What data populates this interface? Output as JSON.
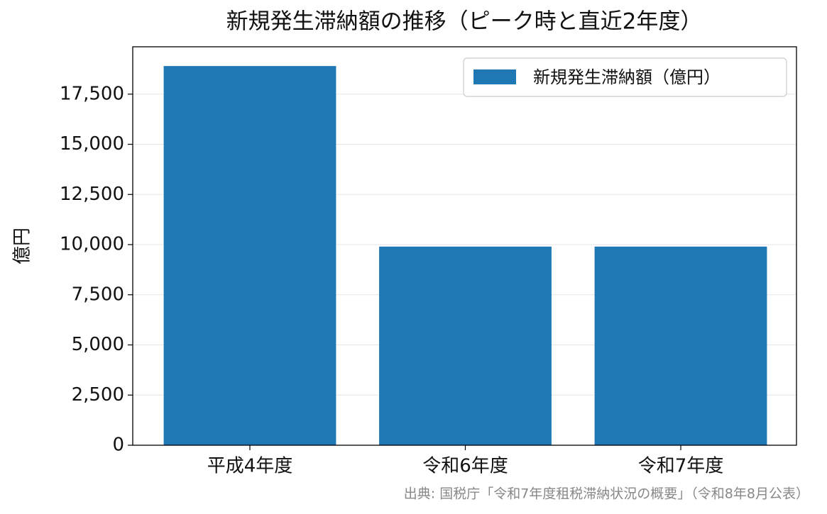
{
  "chart_data": {
    "type": "bar",
    "title": "新規発生滞納額の推移（ピーク時と直近2年度）",
    "y_label": "億円",
    "categories": [
      "平成4年度",
      "令和6年度",
      "令和7年度"
    ],
    "series": [
      {
        "name": "新規発生滞納額（億円）",
        "color": "#1f77b4",
        "values": [
          18900,
          9900,
          9900
        ]
      }
    ],
    "ylim": [
      0,
      19860
    ],
    "yticks": [
      0,
      {
        "value": 2500,
        "label": "2,500"
      },
      {
        "value": 5000,
        "label": "5,000"
      },
      {
        "value": 7500,
        "label": "7,500"
      },
      {
        "value": 10000,
        "label": "10,000"
      },
      {
        "value": 12500,
        "label": "12,500"
      },
      {
        "value": 15000,
        "label": "15,000"
      },
      {
        "value": 17500,
        "label": "17,500"
      }
    ],
    "grid": true,
    "legend": "upper right",
    "source": "出典: 国税庁「令和7年度租税滞納状況の概要」（令和8年8月公表）"
  }
}
